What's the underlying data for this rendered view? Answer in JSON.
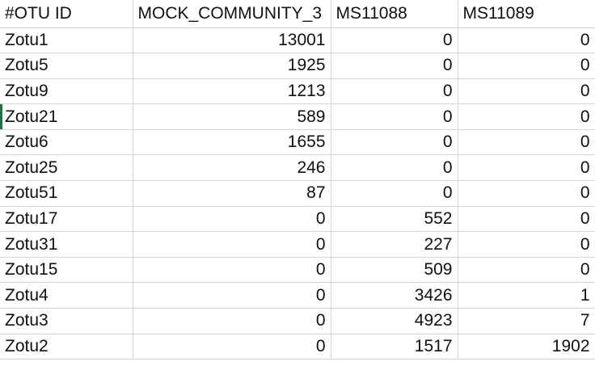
{
  "columns": [
    "#OTU ID",
    "MOCK_COMMUNITY_3",
    "MS11088",
    "MS11089"
  ],
  "rows": [
    [
      "Zotu1",
      "13001",
      "0",
      "0"
    ],
    [
      "Zotu5",
      "1925",
      "0",
      "0"
    ],
    [
      "Zotu9",
      "1213",
      "0",
      "0"
    ],
    [
      "Zotu21",
      "589",
      "0",
      "0"
    ],
    [
      "Zotu6",
      "1655",
      "0",
      "0"
    ],
    [
      "Zotu25",
      "246",
      "0",
      "0"
    ],
    [
      "Zotu51",
      "87",
      "0",
      "0"
    ],
    [
      "Zotu17",
      "0",
      "552",
      "0"
    ],
    [
      "Zotu31",
      "0",
      "227",
      "0"
    ],
    [
      "Zotu15",
      "0",
      "509",
      "0"
    ],
    [
      "Zotu4",
      "0",
      "3426",
      "1"
    ],
    [
      "Zotu3",
      "0",
      "4923",
      "7"
    ],
    [
      "Zotu2",
      "0",
      "1517",
      "1902"
    ]
  ],
  "selection_color": "#1e7145",
  "grid_color": "#d4d4d4"
}
